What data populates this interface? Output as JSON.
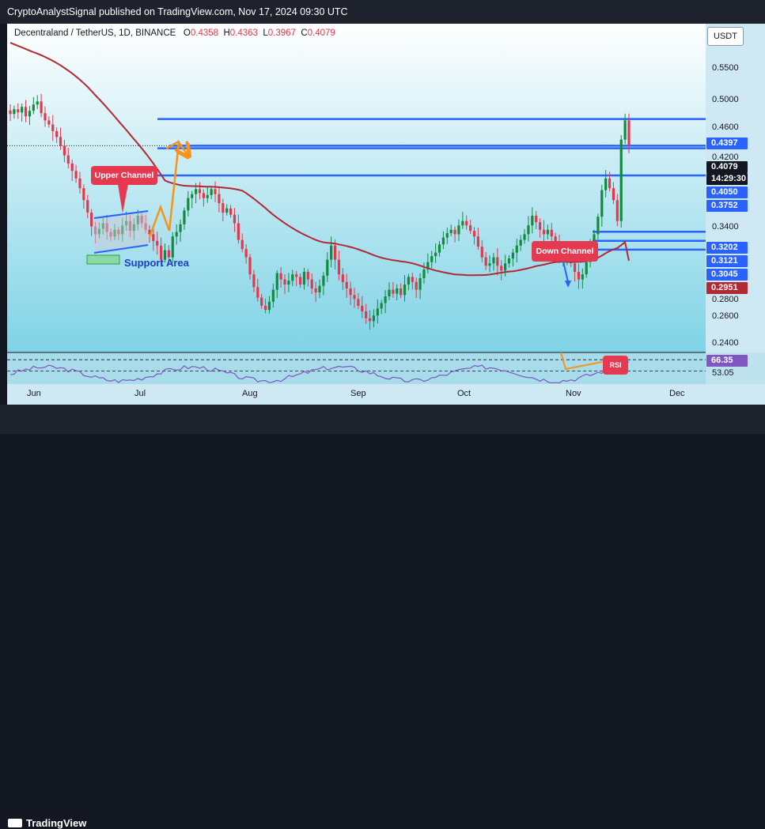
{
  "header": {
    "publish_line": "CryptoAnalystSignal published on TradingView.com, Nov 17, 2024 09:30 UTC"
  },
  "legend": {
    "symbol_line": "Decentraland / TetherUS, 1D, BINANCE",
    "o_label": "O",
    "o_value": "0.4358",
    "h_label": "H",
    "h_value": "0.4363",
    "l_label": "L",
    "l_value": "0.3967",
    "c_label": "C",
    "c_value": "0.4079"
  },
  "currency_button": "USDT",
  "price_ticks": [
    "0.5500",
    "0.5000",
    "0.4600",
    "0.4200",
    "0.3400",
    "0.2800",
    "0.2600",
    "0.2400"
  ],
  "price_labels": [
    {
      "text": "0.4397",
      "color": "#2962ff"
    },
    {
      "text": "0.4079",
      "color": "#131722"
    },
    {
      "text": "14:29:30",
      "color": "#131722"
    },
    {
      "text": "0.4050",
      "color": "#2962ff"
    },
    {
      "text": "0.3752",
      "color": "#2962ff"
    },
    {
      "text": "0.3202",
      "color": "#2962ff"
    },
    {
      "text": "0.3121",
      "color": "#2962ff"
    },
    {
      "text": "0.3045",
      "color": "#2962ff"
    },
    {
      "text": "0.2951",
      "color": "#b22833"
    }
  ],
  "rsi_labels": {
    "value_1": "66.35",
    "value_2": "53.05",
    "value_1_color": "#7e57c2"
  },
  "time_ticks": [
    "Jun",
    "Jul",
    "Aug",
    "Sep",
    "Oct",
    "Nov",
    "Dec"
  ],
  "annotations": {
    "upper_channel": "Upper Channel",
    "down_channel": "Down Channel",
    "support_area": "Support Area",
    "rsi_tag": "RSI"
  },
  "footer": {
    "brand": "TradingView"
  },
  "colors": {
    "bg_gradient_top": "#ffffff",
    "bg_gradient_bottom": "#7fd3e6",
    "up_candle": "#138a3f",
    "down_candle": "#e0394c",
    "ma_line": "#b22833",
    "level_line": "#2962ff",
    "arrow": "#f7931a",
    "rsi_line": "#7e57c2"
  },
  "chart_data": {
    "type": "candlestick",
    "symbol": "Decentraland / TetherUS",
    "interval": "1D",
    "exchange": "BINANCE",
    "ylim": [
      0.228,
      0.575
    ],
    "y_scale": "log",
    "horizontal_levels": [
      0.4397,
      0.4079,
      0.405,
      0.3752,
      0.3202,
      0.3121,
      0.3045
    ],
    "moving_average_last": 0.2951,
    "ohlc_last": {
      "open": 0.4358,
      "high": 0.4363,
      "low": 0.3967,
      "close": 0.4079
    },
    "close_series_approx": [
      0.446,
      0.452,
      0.448,
      0.455,
      0.443,
      0.45,
      0.458,
      0.462,
      0.447,
      0.438,
      0.433,
      0.425,
      0.418,
      0.408,
      0.397,
      0.388,
      0.38,
      0.372,
      0.362,
      0.35,
      0.338,
      0.325,
      0.318,
      0.323,
      0.328,
      0.32,
      0.316,
      0.322,
      0.318,
      0.326,
      0.33,
      0.321,
      0.327,
      0.335,
      0.328,
      0.322,
      0.318,
      0.312,
      0.308,
      0.296,
      0.304,
      0.298,
      0.316,
      0.32,
      0.327,
      0.34,
      0.352,
      0.356,
      0.361,
      0.357,
      0.352,
      0.355,
      0.361,
      0.356,
      0.347,
      0.338,
      0.342,
      0.336,
      0.328,
      0.313,
      0.305,
      0.298,
      0.284,
      0.274,
      0.266,
      0.26,
      0.257,
      0.263,
      0.272,
      0.285,
      0.28,
      0.276,
      0.279,
      0.284,
      0.282,
      0.276,
      0.286,
      0.28,
      0.273,
      0.27,
      0.275,
      0.283,
      0.296,
      0.308,
      0.296,
      0.284,
      0.278,
      0.273,
      0.268,
      0.265,
      0.26,
      0.256,
      0.251,
      0.249,
      0.253,
      0.258,
      0.262,
      0.267,
      0.272,
      0.269,
      0.273,
      0.268,
      0.276,
      0.282,
      0.278,
      0.272,
      0.281,
      0.288,
      0.294,
      0.299,
      0.302,
      0.309,
      0.315,
      0.319,
      0.322,
      0.318,
      0.326,
      0.33,
      0.326,
      0.321,
      0.316,
      0.307,
      0.298,
      0.291,
      0.293,
      0.298,
      0.291,
      0.287,
      0.293,
      0.297,
      0.302,
      0.308,
      0.313,
      0.318,
      0.326,
      0.335,
      0.329,
      0.322,
      0.318,
      0.322,
      0.316,
      0.31,
      0.3,
      0.296,
      0.298,
      0.293,
      0.286,
      0.28,
      0.284,
      0.294,
      0.306,
      0.318,
      0.334,
      0.36,
      0.372,
      0.362,
      0.35,
      0.33,
      0.415,
      0.438,
      0.408
    ],
    "rsi": {
      "last": 66.35,
      "reference": 53.05
    }
  }
}
